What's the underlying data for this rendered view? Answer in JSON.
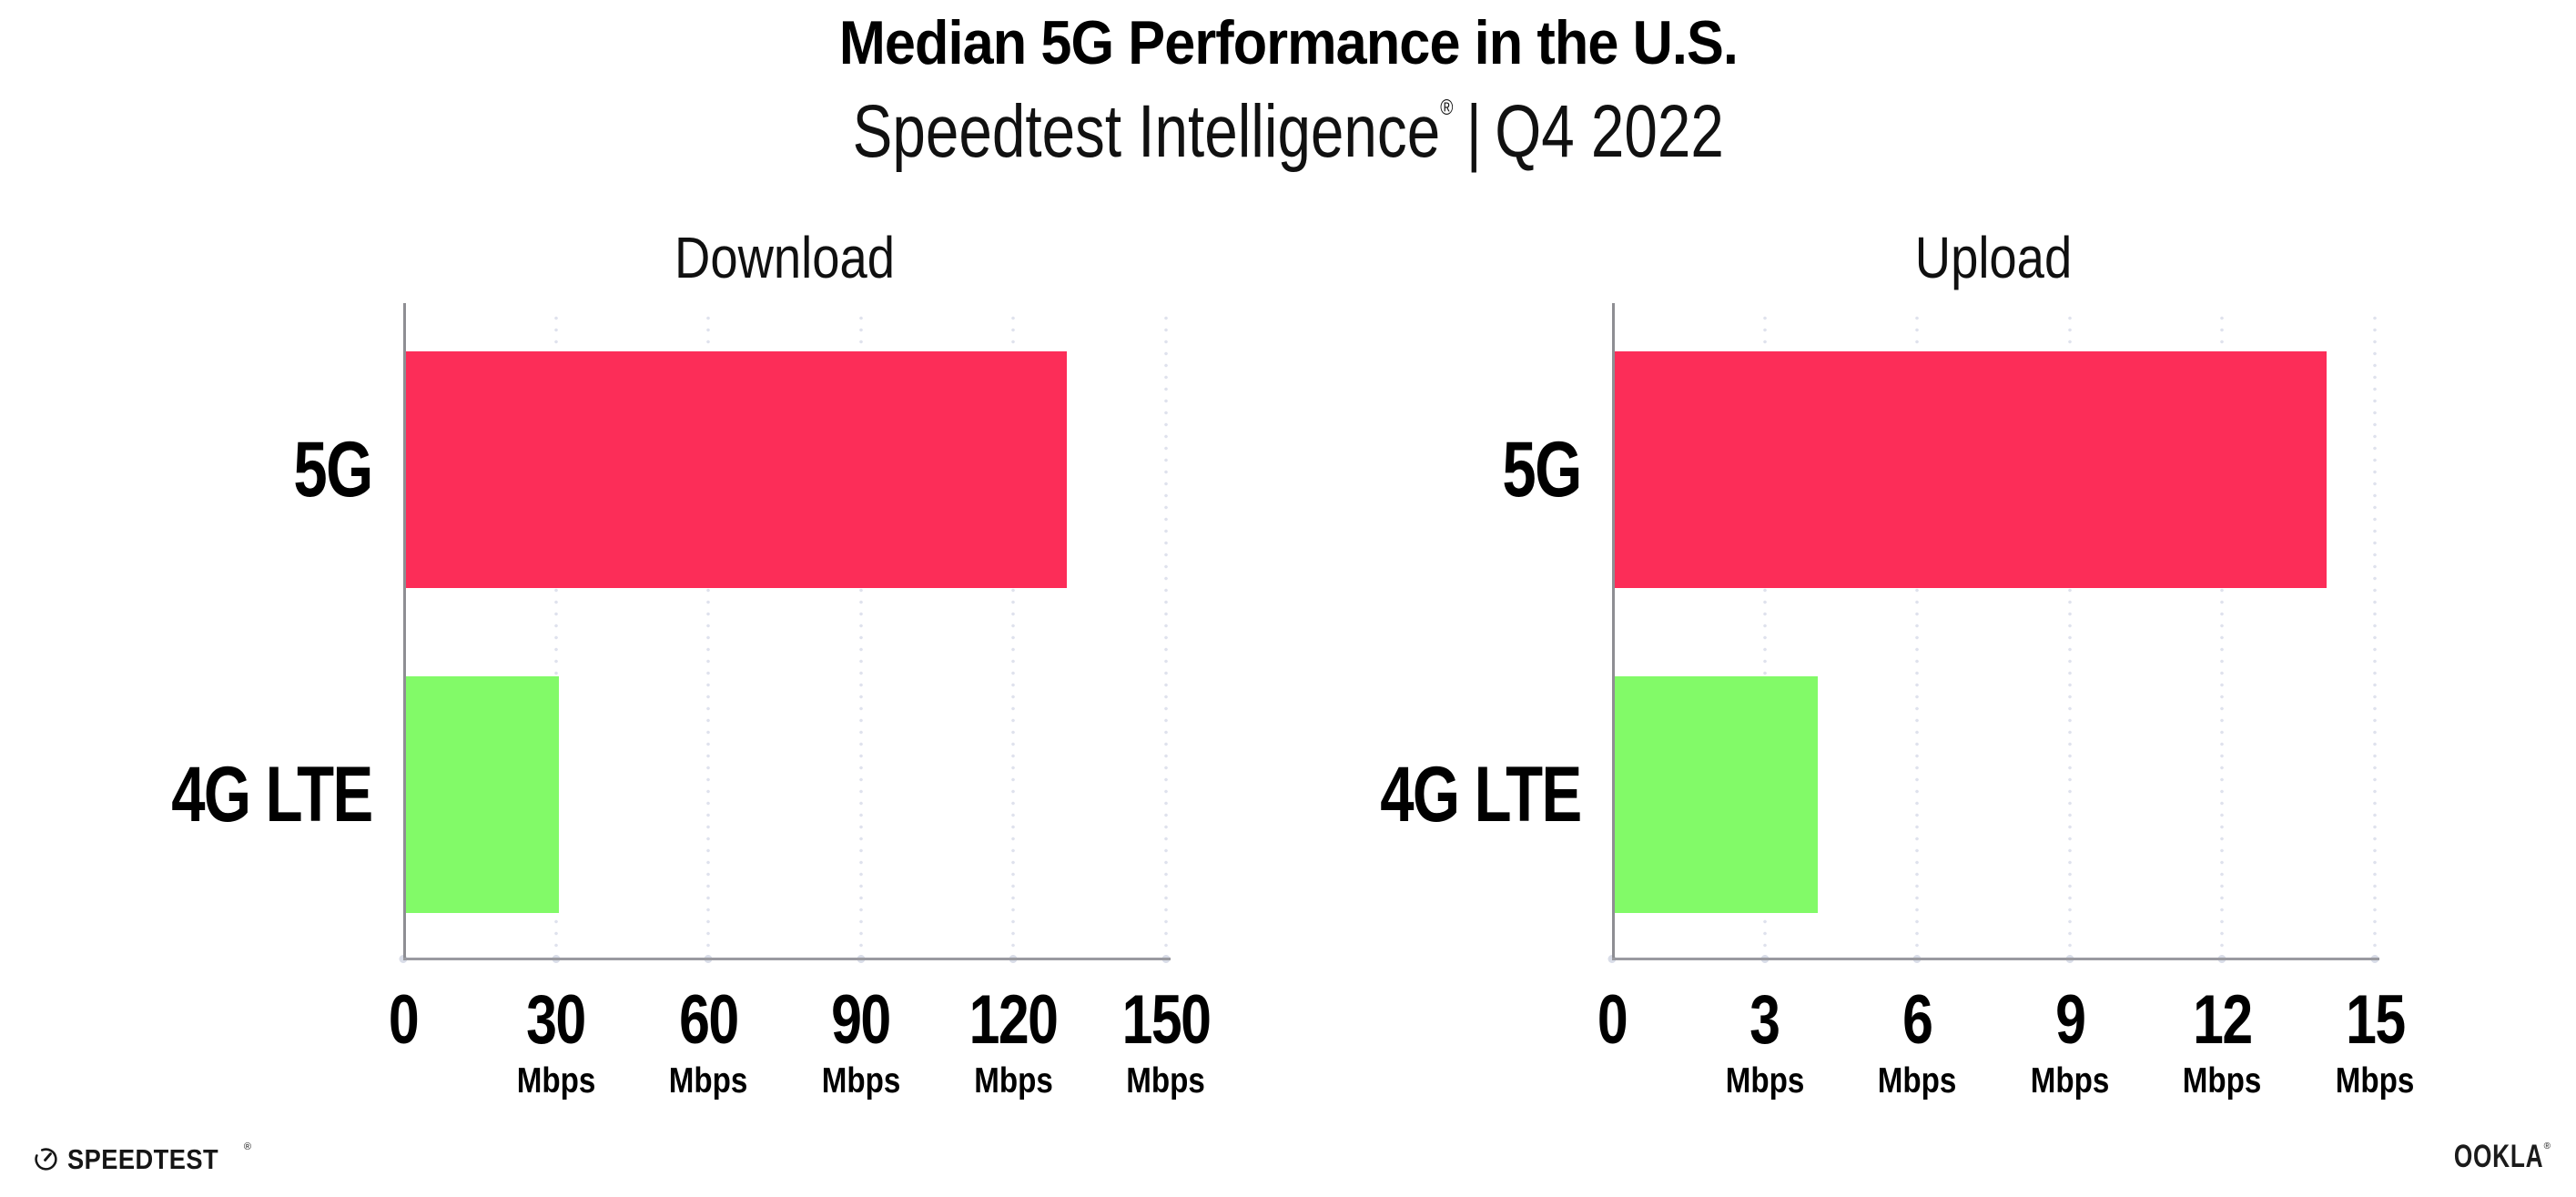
{
  "header": {
    "title": "Median 5G Performance in the U.S.",
    "subtitle_brand": "Speedtest Intelligence",
    "subtitle_reg": "®",
    "subtitle_divider": "|",
    "subtitle_period": "Q4 2022"
  },
  "chart_data": [
    {
      "type": "bar",
      "orientation": "horizontal",
      "title": "Download",
      "categories": [
        "5G",
        "4G LTE"
      ],
      "values": [
        130,
        30
      ],
      "unit": "Mbps",
      "xlim": [
        0,
        150
      ],
      "xticks": [
        0,
        30,
        60,
        90,
        120,
        150
      ],
      "bar_colors": [
        "#FC2D58",
        "#82FA68"
      ],
      "grid": "vertical-dotted",
      "xlabel": "",
      "ylabel": ""
    },
    {
      "type": "bar",
      "orientation": "horizontal",
      "title": "Upload",
      "categories": [
        "5G",
        "4G LTE"
      ],
      "values": [
        14,
        4
      ],
      "unit": "Mbps",
      "xlim": [
        0,
        15
      ],
      "xticks": [
        0,
        3,
        6,
        9,
        12,
        15
      ],
      "bar_colors": [
        "#FC2D58",
        "#82FA68"
      ],
      "grid": "vertical-dotted",
      "xlabel": "",
      "ylabel": ""
    }
  ],
  "colors": {
    "bar_5g": "#FC2D58",
    "bar_4g_lte": "#82FA68",
    "axis_y": "#8E8E93",
    "axis_x": "#9A9AA0",
    "gridline_dot": "#DFE2ED",
    "tick_dot": "#D9DDE8",
    "text": "#000000"
  },
  "footer": {
    "speedtest_logo_text": "SPEEDTEST",
    "speedtest_reg": "®",
    "ookla_logo_text": "OOKLA",
    "ookla_reg": "®"
  }
}
